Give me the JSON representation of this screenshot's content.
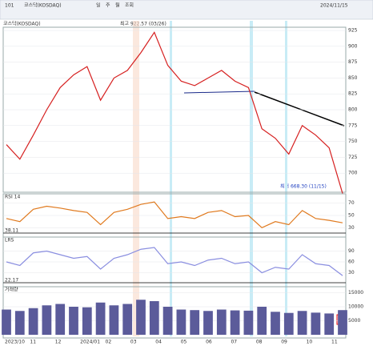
{
  "toolbar": {
    "code": "101",
    "name": "코스닥(KOSDAQ)",
    "buttons": [
      "일",
      "주",
      "월",
      "조회"
    ],
    "date": "2024/11/15"
  },
  "legend": "코스닥(KOSDAQ)",
  "high_label": "최고 922.57 (03/26)",
  "low_label": "최저 668.30 (11/15)",
  "x_axis_labels": [
    "2023/10",
    "11",
    "12",
    "2024/01",
    "02",
    "03",
    "04",
    "05",
    "06",
    "07",
    "08",
    "09",
    "10",
    "11"
  ],
  "chart_data": [
    {
      "type": "line",
      "title": "코스닥(KOSDAQ)",
      "color": "#d62020",
      "values": [
        745,
        722,
        760,
        800,
        835,
        855,
        868,
        815,
        850,
        862,
        890,
        922,
        870,
        845,
        838,
        850,
        862,
        845,
        835,
        770,
        755,
        730,
        775,
        760,
        740,
        668
      ],
      "ylim": [
        675,
        925
      ],
      "yticks": [
        700,
        725,
        750,
        775,
        800,
        825,
        850,
        875,
        900,
        925
      ]
    },
    {
      "type": "line",
      "title": "RSI 14",
      "color": "#e07a1f",
      "last_label": "38.11",
      "values": [
        45,
        40,
        60,
        65,
        62,
        58,
        55,
        35,
        55,
        60,
        68,
        72,
        45,
        48,
        45,
        55,
        58,
        48,
        50,
        30,
        40,
        35,
        58,
        45,
        42,
        38
      ],
      "ylim": [
        20,
        80
      ],
      "yticks": [
        30,
        50,
        70
      ]
    },
    {
      "type": "line",
      "title": "LRS",
      "color": "#8a8ee0",
      "last_label": "22.17",
      "values": [
        60,
        50,
        85,
        90,
        80,
        70,
        75,
        40,
        70,
        80,
        95,
        100,
        55,
        60,
        50,
        65,
        70,
        55,
        60,
        30,
        45,
        40,
        80,
        55,
        50,
        22
      ],
      "ylim": [
        0,
        120
      ],
      "yticks": [
        30,
        60,
        90
      ]
    },
    {
      "type": "bar",
      "title": "거래량",
      "color": "#5b5b9a",
      "values": [
        9000,
        8500,
        9500,
        10500,
        11000,
        10000,
        9800,
        11500,
        10500,
        11000,
        12500,
        12000,
        10000,
        9000,
        8800,
        8500,
        9000,
        8700,
        8600,
        10000,
        8200,
        7800,
        8500,
        7900,
        7600,
        8800
      ],
      "ylim": [
        0,
        16000
      ],
      "yticks": [
        5000,
        10000,
        15000
      ]
    }
  ]
}
